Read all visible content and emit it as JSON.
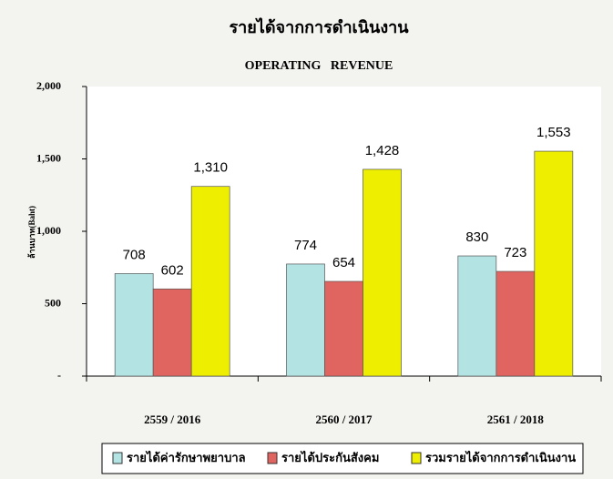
{
  "chart_data": {
    "type": "bar",
    "title": "รายได้จากการดำเนินงาน",
    "subtitle": "OPERATING   REVENUE",
    "y_label": "ล้านบาท(Baht)",
    "categories": [
      "2559 / 2016",
      "2560 / 2017",
      "2561 / 2018"
    ],
    "series": [
      {
        "name": "รายได้ค่ารักษาพยาบาล",
        "color": "#b3e3e3",
        "values": [
          708,
          774,
          830
        ],
        "value_labels": [
          "708",
          "774",
          "830"
        ]
      },
      {
        "name": "รายได้ประกันสังคม",
        "color": "#e0645f",
        "values": [
          602,
          654,
          723
        ],
        "value_labels": [
          "602",
          "654",
          "723"
        ]
      },
      {
        "name": "รวมรายได้จากการดำเนินงาน",
        "color": "#eeee00",
        "values": [
          1310,
          1428,
          1553
        ],
        "value_labels": [
          "1,310",
          "1,428",
          "1,553"
        ]
      }
    ],
    "ylim": [
      0,
      2000
    ],
    "yticks": [
      {
        "value": 0,
        "label": "-"
      },
      500,
      {
        "value": 1000,
        "label": "1,000"
      },
      {
        "value": 1500,
        "label": "1,500"
      },
      {
        "value": 2000,
        "label": "2,000"
      }
    ],
    "legend": "bottom"
  }
}
